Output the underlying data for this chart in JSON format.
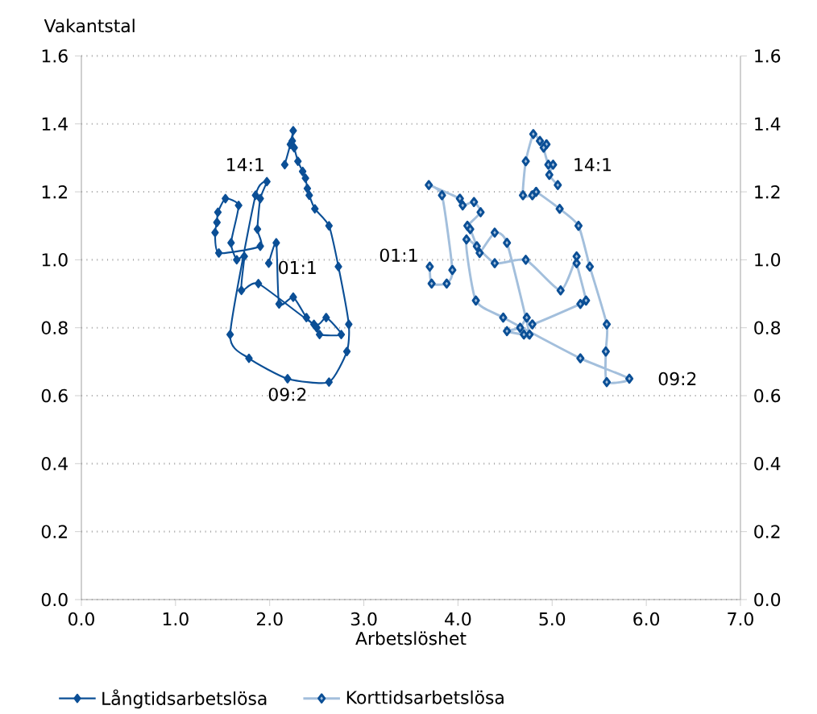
{
  "chart_data": {
    "type": "line",
    "xlabel": "Arbetslöshet",
    "ylabel": "Vakantstal",
    "xlim": [
      0,
      7
    ],
    "xticks": [
      {
        "value": 0,
        "label": "0.0"
      },
      {
        "value": 1,
        "label": "1.0"
      },
      {
        "value": 2,
        "label": "2.0"
      },
      {
        "value": 3,
        "label": "3.0"
      },
      {
        "value": 4,
        "label": "4.0"
      },
      {
        "value": 5,
        "label": "5.0"
      },
      {
        "value": 6,
        "label": "6.0"
      },
      {
        "value": 7,
        "label": "7.0"
      }
    ],
    "ylim": [
      0,
      1.6
    ],
    "yticks": [
      {
        "value": 0,
        "label": "0.0"
      },
      {
        "value": 0.2,
        "label": "0.2"
      },
      {
        "value": 0.4,
        "label": "0.4"
      },
      {
        "value": 0.6,
        "label": "0.6"
      },
      {
        "value": 0.8,
        "label": "0.8"
      },
      {
        "value": 1.0,
        "label": "1.0"
      },
      {
        "value": 1.2,
        "label": "1.2"
      },
      {
        "value": 1.4,
        "label": "1.4"
      },
      {
        "value": 1.6,
        "label": "1.6"
      }
    ],
    "y2lim": [
      0,
      1.6
    ],
    "y2ticks": [
      {
        "value": 0,
        "label": "0.0"
      },
      {
        "value": 0.2,
        "label": "0.2"
      },
      {
        "value": 0.4,
        "label": "0.4"
      },
      {
        "value": 0.6,
        "label": "0.6"
      },
      {
        "value": 0.8,
        "label": "0.8"
      },
      {
        "value": 1.0,
        "label": "1.0"
      },
      {
        "value": 1.2,
        "label": "1.2"
      },
      {
        "value": 1.4,
        "label": "1.4"
      },
      {
        "value": 1.6,
        "label": "1.6"
      }
    ],
    "grid": "y",
    "legend": "bottom",
    "marker": "diamond",
    "line_style": "solid",
    "series": [
      {
        "name": "Långtidsarbetslösa",
        "color": "#0b4f96",
        "x": [
          1.99,
          2.07,
          2.1,
          2.25,
          2.39,
          2.5,
          2.53,
          2.76,
          2.6,
          2.47,
          1.88,
          1.7,
          1.73,
          1.65,
          1.59,
          1.67,
          1.53,
          1.45,
          1.44,
          1.42,
          1.46,
          1.9,
          1.87,
          1.9,
          1.97,
          1.85,
          1.58,
          1.78,
          2.19,
          2.63,
          2.82,
          2.84,
          2.73,
          2.63,
          2.48,
          2.42,
          2.4,
          2.38,
          2.35,
          2.3,
          2.26,
          2.24,
          2.25,
          2.22,
          2.16
        ],
        "values": [
          0.99,
          1.05,
          0.87,
          0.89,
          0.83,
          0.8,
          0.78,
          0.78,
          0.83,
          0.81,
          0.93,
          0.91,
          1.01,
          1.0,
          1.05,
          1.16,
          1.18,
          1.14,
          1.11,
          1.08,
          1.02,
          1.04,
          1.09,
          1.18,
          1.23,
          1.19,
          0.78,
          0.71,
          0.65,
          0.64,
          0.73,
          0.81,
          0.98,
          1.1,
          1.15,
          1.19,
          1.21,
          1.24,
          1.26,
          1.29,
          1.33,
          1.35,
          1.38,
          1.34,
          1.28
        ]
      },
      {
        "name": "Korttidsarbetslösa",
        "color": "#a3bfdc",
        "x": [
          3.7,
          3.72,
          3.88,
          3.94,
          3.83,
          3.69,
          4.02,
          4.05,
          4.17,
          4.24,
          4.1,
          4.13,
          4.2,
          4.23,
          4.39,
          4.52,
          4.76,
          4.7,
          4.52,
          4.66,
          4.73,
          4.79,
          5.3,
          5.36,
          5.26,
          5.26,
          5.09,
          4.72,
          4.39,
          4.09,
          4.19,
          4.48,
          5.3,
          5.82,
          5.58,
          5.57,
          5.58,
          5.4,
          5.28,
          5.08,
          4.83,
          4.79,
          4.69,
          4.72,
          4.8,
          4.87,
          4.94,
          4.91,
          4.96,
          5.01,
          4.97,
          5.06
        ],
        "values": [
          0.98,
          0.93,
          0.93,
          0.97,
          1.19,
          1.22,
          1.18,
          1.16,
          1.17,
          1.14,
          1.1,
          1.09,
          1.04,
          1.02,
          1.08,
          1.05,
          0.78,
          0.78,
          0.79,
          0.8,
          0.83,
          0.81,
          0.87,
          0.88,
          0.99,
          1.01,
          0.91,
          1.0,
          0.99,
          1.06,
          0.88,
          0.83,
          0.71,
          0.65,
          0.64,
          0.73,
          0.81,
          0.98,
          1.1,
          1.15,
          1.2,
          1.19,
          1.19,
          1.29,
          1.37,
          1.35,
          1.34,
          1.33,
          1.28,
          1.28,
          1.25,
          1.22
        ]
      }
    ],
    "annotations": [
      {
        "text": "14:1",
        "x": 2.16,
        "y": 1.28
      },
      {
        "text": "01:1",
        "x": 1.99,
        "y": 0.99
      },
      {
        "text": "09:2",
        "x": 2.19,
        "y": 0.65
      },
      {
        "text": "01:1",
        "x": 3.7,
        "y": 0.98
      },
      {
        "text": "14:1",
        "x": 5.01,
        "y": 1.28
      },
      {
        "text": "09:2",
        "x": 5.82,
        "y": 0.65
      }
    ]
  }
}
